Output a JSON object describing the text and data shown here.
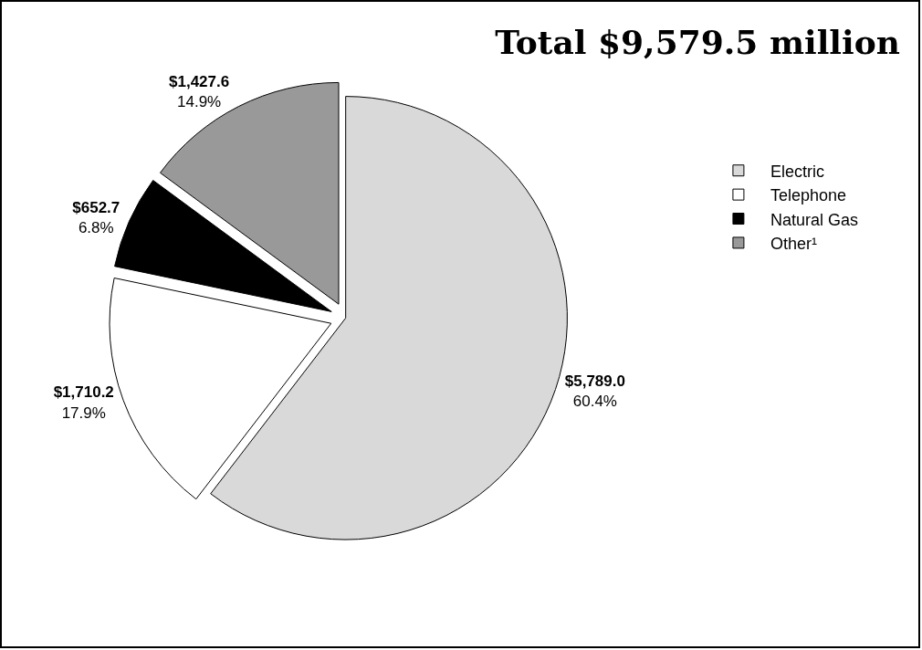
{
  "chart_data": {
    "type": "pie",
    "title": "Total $9,579.5 million",
    "categories": [
      "Electric",
      "Telephone",
      "Natural Gas",
      "Other¹"
    ],
    "values": [
      5789.0,
      1710.2,
      652.7,
      1427.6
    ],
    "colors": [
      "#d9d9d9",
      "#ffffff",
      "#000000",
      "#999999"
    ],
    "value_labels": [
      "$5,789.0\n60.4%",
      "$1,710.2\n17.9%",
      "$652.7\n6.8%",
      "$1,427.6\n14.9%"
    ],
    "legend": "right"
  }
}
